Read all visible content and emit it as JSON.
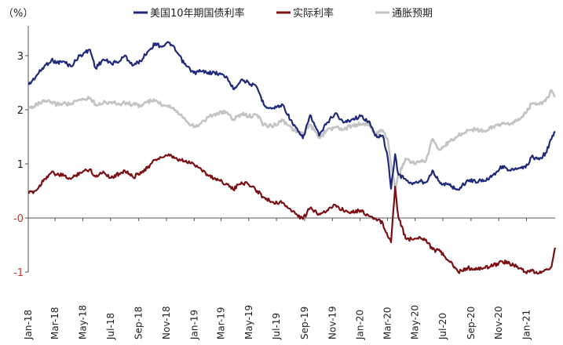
{
  "chart_data": {
    "type": "line",
    "unit_label": "（%）",
    "ylim": [
      -1.0,
      3.55
    ],
    "y_ticks": [
      {
        "value": 3,
        "label": "3"
      },
      {
        "value": 2,
        "label": "2"
      },
      {
        "value": 1,
        "label": "1"
      },
      {
        "value": 0,
        "label": "-0"
      },
      {
        "value": -1,
        "label": "-1"
      }
    ],
    "x_range": [
      "2018-01-01",
      "2021-03-05"
    ],
    "x_ticks": [
      {
        "date": "2018-01-01",
        "label": "Jan-18"
      },
      {
        "date": "2018-03-01",
        "label": "Mar-18"
      },
      {
        "date": "2018-05-01",
        "label": "May-18"
      },
      {
        "date": "2018-07-01",
        "label": "Jul-18"
      },
      {
        "date": "2018-09-01",
        "label": "Sep-18"
      },
      {
        "date": "2018-11-01",
        "label": "Nov-18"
      },
      {
        "date": "2019-01-01",
        "label": "Jan-19"
      },
      {
        "date": "2019-03-01",
        "label": "Mar-19"
      },
      {
        "date": "2019-05-01",
        "label": "May-19"
      },
      {
        "date": "2019-07-01",
        "label": "Jul-19"
      },
      {
        "date": "2019-09-01",
        "label": "Sep-19"
      },
      {
        "date": "2019-11-01",
        "label": "Nov-19"
      },
      {
        "date": "2020-01-01",
        "label": "Jan-20"
      },
      {
        "date": "2020-03-01",
        "label": "Mar-20"
      },
      {
        "date": "2020-05-01",
        "label": "May-20"
      },
      {
        "date": "2020-07-01",
        "label": "Jul-20"
      },
      {
        "date": "2020-09-01",
        "label": "Sep-20"
      },
      {
        "date": "2020-11-01",
        "label": "Nov-20"
      },
      {
        "date": "2021-01-01",
        "label": "Jan-21"
      }
    ],
    "legend_position": "top",
    "series": [
      {
        "name": "美国10年期国债利率",
        "color": "#1f2a7a",
        "points": [
          [
            "2018-01-02",
            2.46
          ],
          [
            "2018-01-20",
            2.64
          ],
          [
            "2018-02-05",
            2.8
          ],
          [
            "2018-02-21",
            2.92
          ],
          [
            "2018-03-05",
            2.87
          ],
          [
            "2018-03-20",
            2.89
          ],
          [
            "2018-04-05",
            2.8
          ],
          [
            "2018-04-24",
            3.0
          ],
          [
            "2018-05-17",
            3.11
          ],
          [
            "2018-05-29",
            2.77
          ],
          [
            "2018-06-15",
            2.93
          ],
          [
            "2018-07-02",
            2.86
          ],
          [
            "2018-07-20",
            2.89
          ],
          [
            "2018-08-01",
            3.0
          ],
          [
            "2018-08-20",
            2.82
          ],
          [
            "2018-09-05",
            2.9
          ],
          [
            "2018-09-20",
            3.07
          ],
          [
            "2018-10-08",
            3.23
          ],
          [
            "2018-10-20",
            3.17
          ],
          [
            "2018-11-08",
            3.24
          ],
          [
            "2018-11-25",
            3.05
          ],
          [
            "2018-12-10",
            2.85
          ],
          [
            "2018-12-31",
            2.68
          ],
          [
            "2019-01-15",
            2.71
          ],
          [
            "2019-02-01",
            2.69
          ],
          [
            "2019-02-25",
            2.67
          ],
          [
            "2019-03-15",
            2.59
          ],
          [
            "2019-03-28",
            2.38
          ],
          [
            "2019-04-15",
            2.56
          ],
          [
            "2019-05-01",
            2.5
          ],
          [
            "2019-05-20",
            2.4
          ],
          [
            "2019-06-03",
            2.1
          ],
          [
            "2019-06-20",
            2.02
          ],
          [
            "2019-07-15",
            2.09
          ],
          [
            "2019-08-05",
            1.75
          ],
          [
            "2019-08-28",
            1.47
          ],
          [
            "2019-09-13",
            1.9
          ],
          [
            "2019-10-03",
            1.52
          ],
          [
            "2019-10-20",
            1.76
          ],
          [
            "2019-11-08",
            1.94
          ],
          [
            "2019-11-25",
            1.76
          ],
          [
            "2019-12-13",
            1.82
          ],
          [
            "2020-01-02",
            1.88
          ],
          [
            "2020-01-20",
            1.79
          ],
          [
            "2020-02-03",
            1.52
          ],
          [
            "2020-02-20",
            1.52
          ],
          [
            "2020-03-02",
            1.1
          ],
          [
            "2020-03-09",
            0.54
          ],
          [
            "2020-03-18",
            1.18
          ],
          [
            "2020-03-25",
            0.8
          ],
          [
            "2020-04-10",
            0.72
          ],
          [
            "2020-04-25",
            0.62
          ],
          [
            "2020-05-10",
            0.68
          ],
          [
            "2020-05-25",
            0.66
          ],
          [
            "2020-06-08",
            0.88
          ],
          [
            "2020-06-25",
            0.64
          ],
          [
            "2020-07-15",
            0.61
          ],
          [
            "2020-08-04",
            0.52
          ],
          [
            "2020-08-25",
            0.7
          ],
          [
            "2020-09-10",
            0.68
          ],
          [
            "2020-09-30",
            0.69
          ],
          [
            "2020-10-20",
            0.8
          ],
          [
            "2020-11-09",
            0.96
          ],
          [
            "2020-11-25",
            0.88
          ],
          [
            "2020-12-10",
            0.9
          ],
          [
            "2020-12-30",
            0.93
          ],
          [
            "2021-01-12",
            1.13
          ],
          [
            "2021-01-29",
            1.08
          ],
          [
            "2021-02-12",
            1.2
          ],
          [
            "2021-02-25",
            1.46
          ],
          [
            "2021-03-05",
            1.6
          ]
        ]
      },
      {
        "name": "实际利率",
        "color": "#7b1113",
        "points": [
          [
            "2018-01-02",
            0.45
          ],
          [
            "2018-01-20",
            0.52
          ],
          [
            "2018-02-05",
            0.72
          ],
          [
            "2018-02-21",
            0.84
          ],
          [
            "2018-03-05",
            0.8
          ],
          [
            "2018-03-20",
            0.78
          ],
          [
            "2018-04-05",
            0.72
          ],
          [
            "2018-04-24",
            0.84
          ],
          [
            "2018-05-17",
            0.9
          ],
          [
            "2018-05-29",
            0.76
          ],
          [
            "2018-06-15",
            0.86
          ],
          [
            "2018-07-02",
            0.74
          ],
          [
            "2018-07-20",
            0.82
          ],
          [
            "2018-08-01",
            0.88
          ],
          [
            "2018-08-20",
            0.75
          ],
          [
            "2018-09-05",
            0.85
          ],
          [
            "2018-09-20",
            0.92
          ],
          [
            "2018-10-08",
            1.08
          ],
          [
            "2018-10-20",
            1.12
          ],
          [
            "2018-11-08",
            1.15
          ],
          [
            "2018-11-25",
            1.08
          ],
          [
            "2018-12-10",
            1.05
          ],
          [
            "2018-12-31",
            1.0
          ],
          [
            "2019-01-15",
            0.92
          ],
          [
            "2019-02-01",
            0.78
          ],
          [
            "2019-02-25",
            0.7
          ],
          [
            "2019-03-15",
            0.62
          ],
          [
            "2019-03-28",
            0.52
          ],
          [
            "2019-04-15",
            0.66
          ],
          [
            "2019-05-01",
            0.62
          ],
          [
            "2019-05-20",
            0.5
          ],
          [
            "2019-06-03",
            0.38
          ],
          [
            "2019-06-20",
            0.3
          ],
          [
            "2019-07-15",
            0.28
          ],
          [
            "2019-08-05",
            0.12
          ],
          [
            "2019-08-28",
            -0.02
          ],
          [
            "2019-09-13",
            0.18
          ],
          [
            "2019-10-03",
            0.08
          ],
          [
            "2019-10-20",
            0.14
          ],
          [
            "2019-11-08",
            0.24
          ],
          [
            "2019-11-25",
            0.14
          ],
          [
            "2019-12-13",
            0.12
          ],
          [
            "2020-01-02",
            0.14
          ],
          [
            "2020-01-20",
            0.04
          ],
          [
            "2020-02-03",
            -0.02
          ],
          [
            "2020-02-20",
            -0.1
          ],
          [
            "2020-03-02",
            -0.35
          ],
          [
            "2020-03-09",
            -0.45
          ],
          [
            "2020-03-18",
            0.58
          ],
          [
            "2020-03-25",
            0.02
          ],
          [
            "2020-04-10",
            -0.38
          ],
          [
            "2020-04-25",
            -0.4
          ],
          [
            "2020-05-10",
            -0.35
          ],
          [
            "2020-05-25",
            -0.4
          ],
          [
            "2020-06-08",
            -0.58
          ],
          [
            "2020-06-25",
            -0.62
          ],
          [
            "2020-07-15",
            -0.8
          ],
          [
            "2020-08-04",
            -1.0
          ],
          [
            "2020-08-25",
            -0.92
          ],
          [
            "2020-09-10",
            -0.96
          ],
          [
            "2020-09-30",
            -0.92
          ],
          [
            "2020-10-20",
            -0.88
          ],
          [
            "2020-11-09",
            -0.8
          ],
          [
            "2020-11-25",
            -0.84
          ],
          [
            "2020-12-10",
            -0.9
          ],
          [
            "2020-12-30",
            -1.0
          ],
          [
            "2021-01-12",
            -0.98
          ],
          [
            "2021-01-29",
            -1.02
          ],
          [
            "2021-02-12",
            -0.96
          ],
          [
            "2021-02-25",
            -0.9
          ],
          [
            "2021-03-05",
            -0.55
          ]
        ]
      },
      {
        "name": "通胀预期",
        "color": "#c4c4c4",
        "points": [
          [
            "2018-01-02",
            2.02
          ],
          [
            "2018-01-20",
            2.1
          ],
          [
            "2018-02-05",
            2.15
          ],
          [
            "2018-02-21",
            2.14
          ],
          [
            "2018-03-05",
            2.1
          ],
          [
            "2018-03-20",
            2.12
          ],
          [
            "2018-04-05",
            2.1
          ],
          [
            "2018-04-24",
            2.18
          ],
          [
            "2018-05-17",
            2.22
          ],
          [
            "2018-05-29",
            2.1
          ],
          [
            "2018-06-15",
            2.13
          ],
          [
            "2018-07-02",
            2.14
          ],
          [
            "2018-07-20",
            2.1
          ],
          [
            "2018-08-01",
            2.13
          ],
          [
            "2018-08-20",
            2.1
          ],
          [
            "2018-09-05",
            2.07
          ],
          [
            "2018-09-20",
            2.15
          ],
          [
            "2018-10-08",
            2.17
          ],
          [
            "2018-10-20",
            2.1
          ],
          [
            "2018-11-08",
            2.08
          ],
          [
            "2018-11-25",
            1.97
          ],
          [
            "2018-12-10",
            1.85
          ],
          [
            "2018-12-31",
            1.68
          ],
          [
            "2019-01-15",
            1.74
          ],
          [
            "2019-02-01",
            1.87
          ],
          [
            "2019-02-25",
            1.94
          ],
          [
            "2019-03-15",
            1.95
          ],
          [
            "2019-03-28",
            1.82
          ],
          [
            "2019-04-15",
            1.92
          ],
          [
            "2019-05-01",
            1.88
          ],
          [
            "2019-05-20",
            1.9
          ],
          [
            "2019-06-03",
            1.72
          ],
          [
            "2019-06-20",
            1.7
          ],
          [
            "2019-07-15",
            1.8
          ],
          [
            "2019-08-05",
            1.63
          ],
          [
            "2019-08-28",
            1.55
          ],
          [
            "2019-09-13",
            1.72
          ],
          [
            "2019-10-03",
            1.48
          ],
          [
            "2019-10-20",
            1.62
          ],
          [
            "2019-11-08",
            1.68
          ],
          [
            "2019-11-25",
            1.63
          ],
          [
            "2019-12-13",
            1.7
          ],
          [
            "2020-01-02",
            1.74
          ],
          [
            "2020-01-20",
            1.75
          ],
          [
            "2020-02-03",
            1.54
          ],
          [
            "2020-02-20",
            1.62
          ],
          [
            "2020-03-02",
            1.45
          ],
          [
            "2020-03-09",
            0.99
          ],
          [
            "2020-03-18",
            0.55
          ],
          [
            "2020-03-25",
            0.78
          ],
          [
            "2020-04-10",
            1.1
          ],
          [
            "2020-04-25",
            1.02
          ],
          [
            "2020-05-10",
            1.03
          ],
          [
            "2020-05-25",
            1.06
          ],
          [
            "2020-06-08",
            1.46
          ],
          [
            "2020-06-25",
            1.26
          ],
          [
            "2020-07-15",
            1.41
          ],
          [
            "2020-08-04",
            1.52
          ],
          [
            "2020-08-25",
            1.62
          ],
          [
            "2020-09-10",
            1.64
          ],
          [
            "2020-09-30",
            1.61
          ],
          [
            "2020-10-20",
            1.68
          ],
          [
            "2020-11-09",
            1.76
          ],
          [
            "2020-11-25",
            1.72
          ],
          [
            "2020-12-10",
            1.8
          ],
          [
            "2020-12-30",
            1.93
          ],
          [
            "2021-01-12",
            2.11
          ],
          [
            "2021-01-29",
            2.1
          ],
          [
            "2021-02-12",
            2.16
          ],
          [
            "2021-02-25",
            2.36
          ],
          [
            "2021-03-05",
            2.24
          ]
        ]
      }
    ]
  }
}
